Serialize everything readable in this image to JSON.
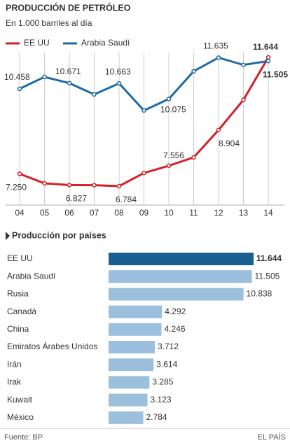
{
  "chart_data": [
    {
      "type": "line",
      "title": "PRODUCCIÓN DE PETRÓLEO",
      "subtitle": "En 1.000 barriles al día",
      "categories": [
        "04",
        "05",
        "06",
        "07",
        "08",
        "09",
        "10",
        "11",
        "12",
        "13",
        "14"
      ],
      "series": [
        {
          "name": "EE UU",
          "color": "#d42027",
          "values": [
            7250,
            6890,
            6827,
            6820,
            6784,
            7280,
            7556,
            7870,
            8904,
            10040,
            11644
          ],
          "value_labels": [
            "7.250",
            null,
            "6.827",
            null,
            "6.784",
            null,
            "7.556",
            null,
            "8.904",
            null,
            "11.644"
          ]
        },
        {
          "name": "Arabia Saudí",
          "color": "#1f6aa5",
          "values": [
            10458,
            10907,
            10671,
            10247,
            10663,
            9640,
            10075,
            11120,
            11635,
            11360,
            11505
          ],
          "value_labels": [
            "10.458",
            null,
            "10.671",
            null,
            "10.663",
            null,
            "10.075",
            null,
            "11.635",
            null,
            "11.505"
          ]
        }
      ],
      "grid": true
    },
    {
      "type": "hbar",
      "title": "Producción por países",
      "categories": [
        "EE UU",
        "Arabia Saudí",
        "Rusia",
        "Canadá",
        "China",
        "Emiratos Árabes Unidos",
        "Irán",
        "Irak",
        "Kuwait",
        "México"
      ],
      "values": [
        11644,
        11505,
        10838,
        4292,
        4246,
        3712,
        3614,
        3285,
        3123,
        2784
      ],
      "value_labels": [
        "11.644",
        "11.505",
        "10.838",
        "4.292",
        "4.246",
        "3.712",
        "3.614",
        "3.285",
        "3.123",
        "2.784"
      ],
      "colors": [
        "#1a5f94",
        "#9bbfdc",
        "#9bbfdc",
        "#9bbfdc",
        "#9bbfdc",
        "#9bbfdc",
        "#9bbfdc",
        "#9bbfdc",
        "#9bbfdc",
        "#9bbfdc"
      ]
    }
  ],
  "footer": {
    "source": "Fuente: BP",
    "brand": "EL PAÍS"
  }
}
